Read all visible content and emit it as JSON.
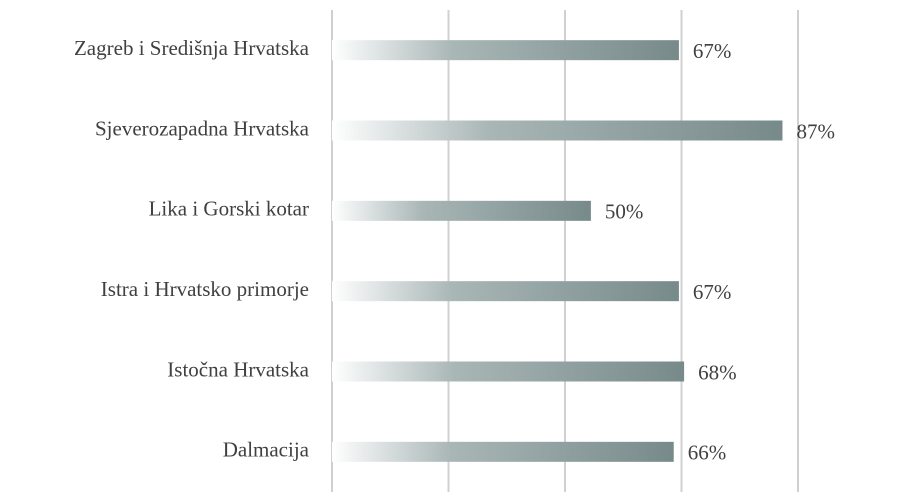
{
  "chart_data": {
    "type": "barh",
    "categories": [
      "Zagreb i Središnja Hrvatska",
      "Sjeverozapadna Hrvatska",
      "Lika i Gorski kotar",
      "Istra i Hrvatsko primorje",
      "Istočna Hrvatska",
      "Dalmacija"
    ],
    "values": [
      67,
      87,
      50,
      67,
      68,
      66
    ],
    "value_labels": [
      "67%",
      "87%",
      "50%",
      "67%",
      "68%",
      "66%"
    ],
    "color": "#778a8a",
    "xlim": [
      0,
      90
    ],
    "xticks": [
      0,
      22.5,
      45,
      67.5,
      90
    ],
    "grid": true
  }
}
